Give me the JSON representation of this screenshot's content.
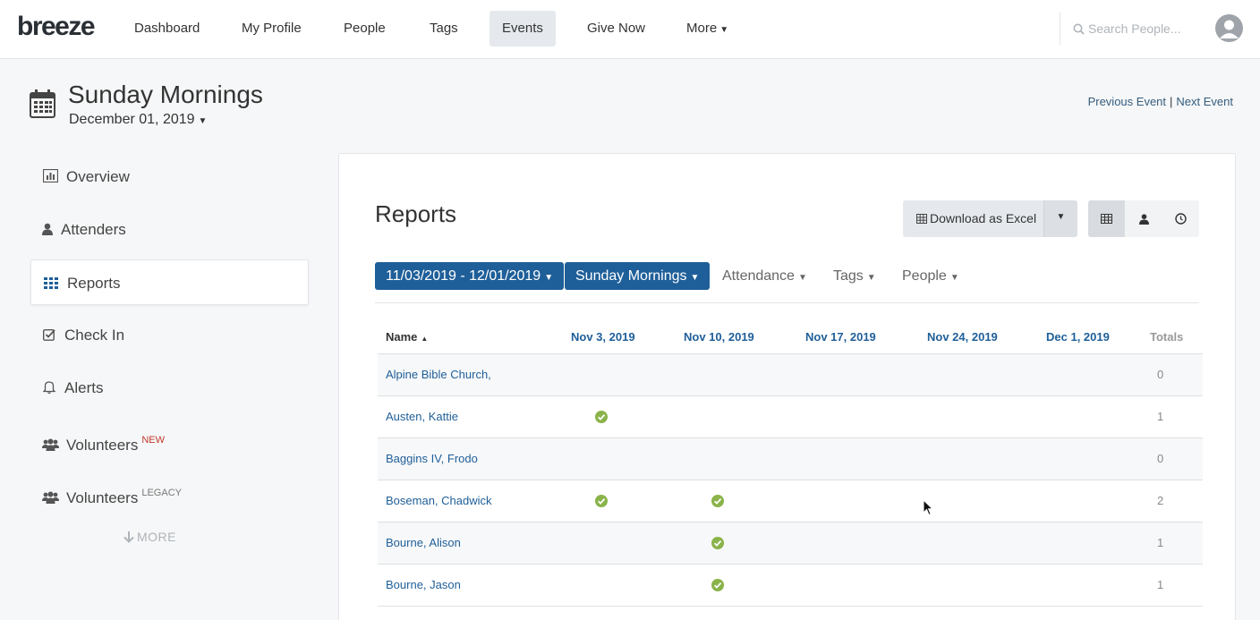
{
  "app": {
    "logo": "breeze"
  },
  "nav": {
    "items": [
      {
        "label": "Dashboard"
      },
      {
        "label": "My Profile"
      },
      {
        "label": "People"
      },
      {
        "label": "Tags"
      },
      {
        "label": "Events",
        "active": true
      },
      {
        "label": "Give Now"
      },
      {
        "label": "More"
      }
    ],
    "search_placeholder": "Search People..."
  },
  "event": {
    "title": "Sunday Mornings",
    "date": "December 01, 2019",
    "previous_label": "Previous Event",
    "separator": "|",
    "next_label": "Next Event"
  },
  "sidebar": {
    "items": [
      {
        "label": "Overview",
        "icon": "bar-chart-icon"
      },
      {
        "label": "Attenders",
        "icon": "person-icon"
      },
      {
        "label": "Reports",
        "icon": "grid-icon",
        "active": true
      },
      {
        "label": "Check In",
        "icon": "checkbox-icon"
      },
      {
        "label": "Alerts",
        "icon": "bell-icon"
      },
      {
        "label": "Volunteers",
        "icon": "group-icon",
        "badge": "NEW"
      },
      {
        "label": "Volunteers",
        "icon": "group-icon",
        "badge": "LEGACY"
      }
    ],
    "more_label": "MORE"
  },
  "reports": {
    "title": "Reports",
    "download_label": "Download as Excel",
    "filters": {
      "date_range": "11/03/2019 - 12/01/2019",
      "event": "Sunday Mornings",
      "attendance": "Attendance",
      "tags": "Tags",
      "people": "People"
    },
    "columns": {
      "name": "Name",
      "dates": [
        "Nov 3, 2019",
        "Nov 10, 2019",
        "Nov 17, 2019",
        "Nov 24, 2019",
        "Dec 1, 2019"
      ],
      "totals": "Totals"
    },
    "rows": [
      {
        "name": "Alpine Bible Church,",
        "attended": [
          false,
          false,
          false,
          false,
          false
        ],
        "total": "0"
      },
      {
        "name": "Austen, Kattie",
        "attended": [
          true,
          false,
          false,
          false,
          false
        ],
        "total": "1"
      },
      {
        "name": "Baggins IV, Frodo",
        "attended": [
          false,
          false,
          false,
          false,
          false
        ],
        "total": "0"
      },
      {
        "name": "Boseman, Chadwick",
        "attended": [
          true,
          true,
          false,
          false,
          false
        ],
        "total": "2"
      },
      {
        "name": "Bourne, Alison",
        "attended": [
          false,
          true,
          false,
          false,
          false
        ],
        "total": "1"
      },
      {
        "name": "Bourne, Jason",
        "attended": [
          false,
          true,
          false,
          false,
          false
        ],
        "total": "1"
      }
    ]
  },
  "colors": {
    "brand_blue": "#1f5f99",
    "check_green": "#8ab34a",
    "active_nav": "#e5e9ed"
  }
}
